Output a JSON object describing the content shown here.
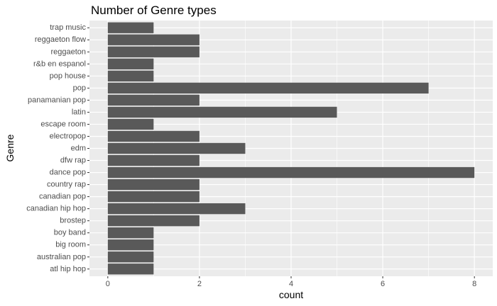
{
  "chart_data": {
    "type": "bar",
    "orientation": "horizontal",
    "title": "Number of Genre types",
    "xlabel": "count",
    "ylabel": "Genre",
    "categories": [
      "atl hip hop",
      "australian pop",
      "big room",
      "boy band",
      "brostep",
      "canadian hip hop",
      "canadian pop",
      "country rap",
      "dance pop",
      "dfw rap",
      "edm",
      "electropop",
      "escape room",
      "latin",
      "panamanian pop",
      "pop",
      "pop house",
      "r&b en espanol",
      "reggaeton",
      "reggaeton flow",
      "trap music"
    ],
    "values": [
      1,
      1,
      1,
      1,
      2,
      3,
      2,
      2,
      8,
      2,
      3,
      2,
      1,
      5,
      2,
      7,
      1,
      1,
      2,
      2,
      1
    ],
    "xlim": [
      -0.4,
      8.4
    ],
    "xticks": [
      0,
      2,
      4,
      6,
      8
    ],
    "grid": true,
    "legend": "none",
    "colors": {
      "bar": "#595959",
      "panel": "#ebebeb",
      "grid_major": "#ffffff",
      "tick_text": "#4d4d4d"
    }
  }
}
